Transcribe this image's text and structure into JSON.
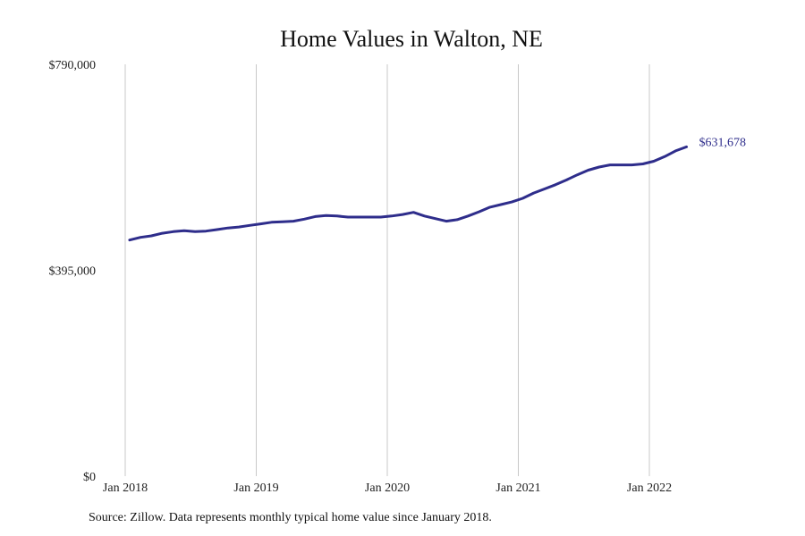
{
  "chart_data": {
    "type": "line",
    "title": "Home Values in Walton, NE",
    "ylim": [
      0,
      790000
    ],
    "y_ticks": [
      {
        "value": 790000,
        "label": "$790,000"
      },
      {
        "value": 395000,
        "label": "$395,000"
      },
      {
        "value": 0,
        "label": "$0"
      }
    ],
    "x_ticks": [
      {
        "value": 0,
        "label": "Jan 2018"
      },
      {
        "value": 12,
        "label": "Jan 2019"
      },
      {
        "value": 24,
        "label": "Jan 2020"
      },
      {
        "value": 36,
        "label": "Jan 2021"
      },
      {
        "value": 48,
        "label": "Jan 2022"
      }
    ],
    "xlim": [
      0,
      60
    ],
    "series": [
      {
        "name": "Typical home value",
        "color": "#2e2d8b",
        "x_start_label": "Jan 2018",
        "values": [
          453000,
          458000,
          461000,
          466000,
          469000,
          471000,
          469000,
          470000,
          473000,
          476000,
          478000,
          481000,
          484000,
          487000,
          488000,
          489000,
          493000,
          498000,
          500000,
          499000,
          497000,
          497000,
          497000,
          497000,
          499000,
          502000,
          506000,
          499000,
          494000,
          489000,
          492000,
          499000,
          507000,
          516000,
          521000,
          526000,
          533000,
          543000,
          551000,
          559000,
          568000,
          578000,
          587000,
          593000,
          597000,
          597000,
          597000,
          599000,
          604000,
          613000,
          624000,
          631678
        ]
      }
    ],
    "end_label": "$631,678",
    "grid": "vertical"
  },
  "footer": {
    "source": "Source: Zillow. Data represents monthly typical home value since January 2018."
  }
}
